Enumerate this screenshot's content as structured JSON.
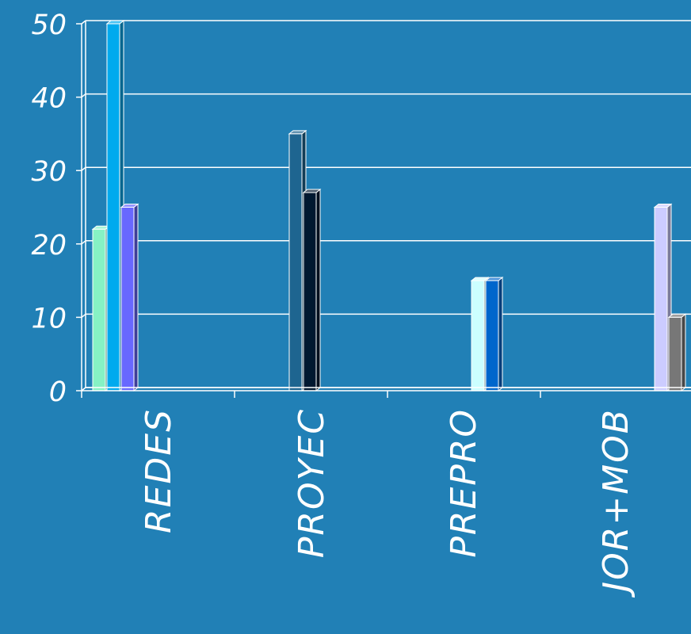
{
  "chart_data": {
    "type": "bar",
    "categories": [
      "REDES",
      "PROYEC",
      "PREPRO",
      "JOR+MOB"
    ],
    "y_ticks": [
      "0",
      "10",
      "20",
      "30",
      "40",
      "50"
    ],
    "ylim": [
      0,
      50
    ],
    "grid": true,
    "legend": "none",
    "background": "#2180b6",
    "series": [
      {
        "color": "#86f2c4",
        "values": [
          22,
          0,
          0,
          0
        ]
      },
      {
        "color": "#00aaee",
        "values": [
          50,
          0,
          0,
          0
        ]
      },
      {
        "color": "#6868ff",
        "values": [
          25,
          0,
          0,
          0
        ]
      },
      {
        "color": "#1e6590",
        "values": [
          0,
          35,
          0,
          0
        ]
      },
      {
        "color": "#001830",
        "values": [
          0,
          27,
          0,
          0
        ]
      },
      {
        "color": "#ccffff",
        "values": [
          0,
          0,
          15,
          0
        ]
      },
      {
        "color": "#0066cc",
        "values": [
          0,
          0,
          15,
          0
        ]
      },
      {
        "color": "#ccccff",
        "values": [
          0,
          0,
          0,
          25
        ]
      },
      {
        "color": "#777777",
        "values": [
          0,
          0,
          0,
          10
        ]
      }
    ]
  }
}
